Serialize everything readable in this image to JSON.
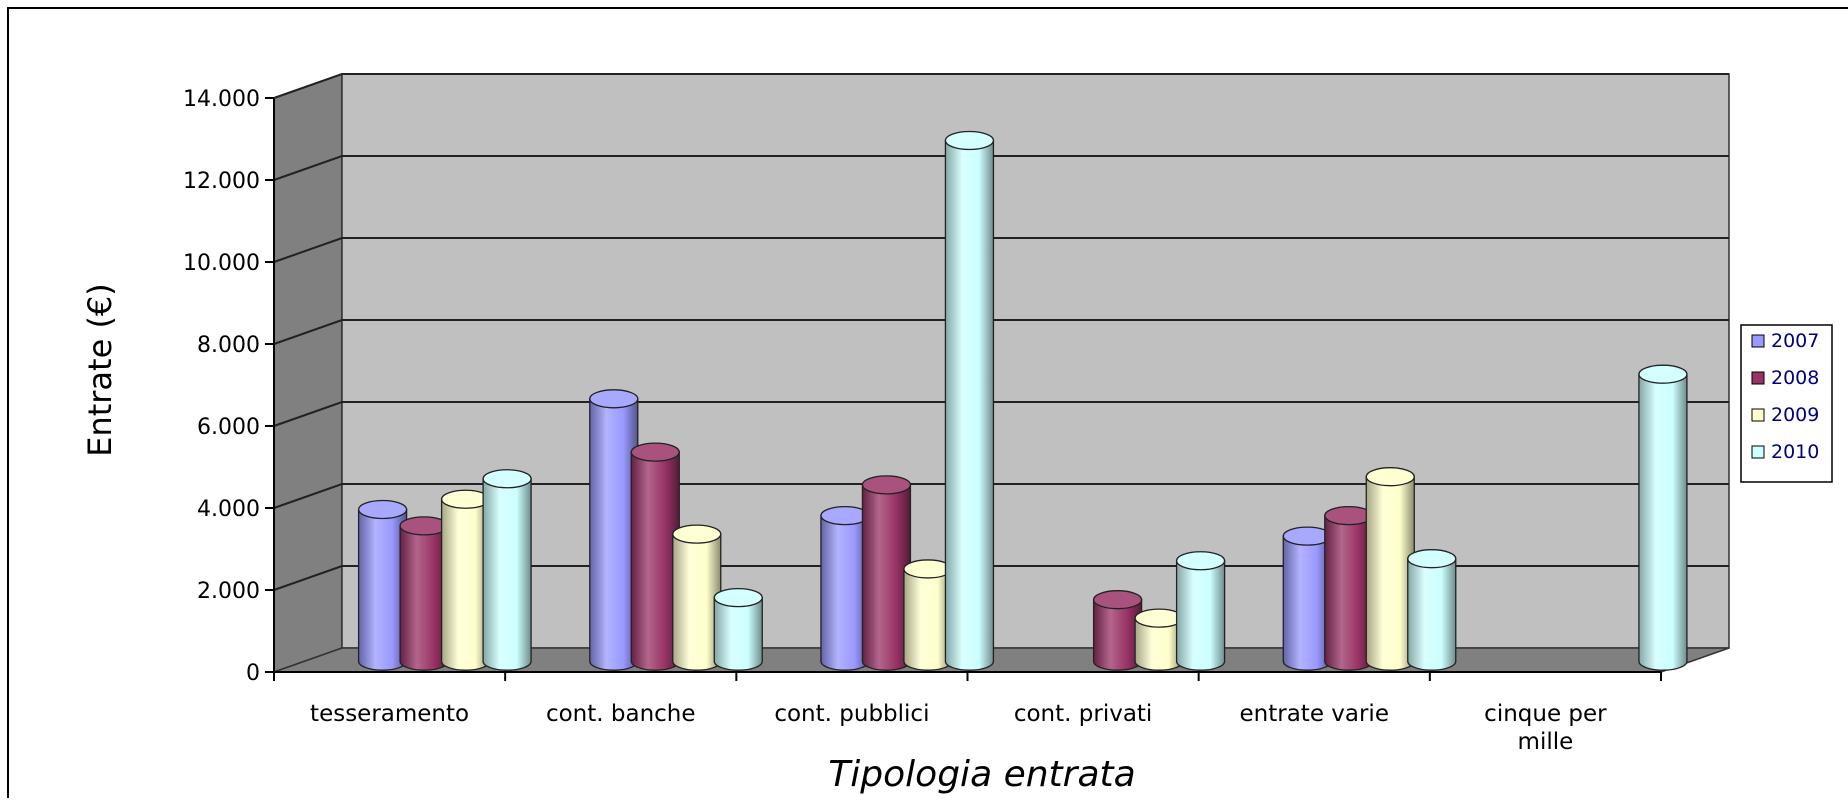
{
  "chart_data": {
    "type": "bar",
    "style": "3d-cylinder",
    "categories": [
      [
        "tesseramento"
      ],
      [
        "cont. banche"
      ],
      [
        "cont. pubblici"
      ],
      [
        "cont. privati"
      ],
      [
        "entrate varie"
      ],
      [
        "cinque per",
        "mille"
      ]
    ],
    "series": [
      {
        "name": "2007",
        "color": "#9999FF",
        "values": [
          3700,
          6400,
          3550,
          null,
          3050,
          null
        ]
      },
      {
        "name": "2008",
        "color": "#993366",
        "values": [
          3300,
          5100,
          4300,
          1500,
          3550,
          null
        ]
      },
      {
        "name": "2009",
        "color": "#FFFFCC",
        "values": [
          3950,
          3100,
          2250,
          1050,
          4500,
          null
        ]
      },
      {
        "name": "2010",
        "color": "#CCFFFF",
        "values": [
          4450,
          1550,
          12700,
          2450,
          2500,
          7000
        ]
      }
    ],
    "xlabel": "Tipologia entrata",
    "ylabel": "Entrate (€)",
    "ylim": [
      0,
      14000
    ],
    "yticks": [
      0,
      2000,
      4000,
      6000,
      8000,
      10000,
      12000,
      14000
    ],
    "ytick_labels": [
      "0",
      "2.000",
      "4.000",
      "6.000",
      "8.000",
      "10.000",
      "12.000",
      "14.000"
    ],
    "grid": true,
    "legend_position": "right"
  },
  "colors": {
    "back_wall": "#C0C0C0",
    "side_wall": "#808080",
    "floor": "#808080"
  }
}
